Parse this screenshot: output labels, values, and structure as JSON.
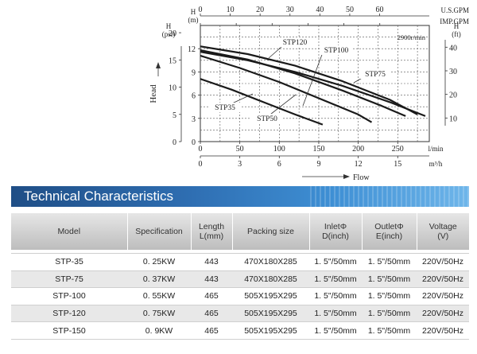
{
  "chart_data": {
    "type": "line",
    "speed_label": "2900r/min",
    "ylabel": "Head",
    "xlabel": "Flow",
    "axes": {
      "us_gpm": {
        "label": "U.S.GPM",
        "ticks": [
          0,
          10,
          20,
          30,
          40,
          50,
          60
        ]
      },
      "imp_gpm": {
        "label": "IMP.GPM",
        "ticks": [
          0,
          10,
          20,
          30,
          40,
          50
        ]
      },
      "l_min": {
        "label": "l/min",
        "ticks": [
          0,
          50,
          100,
          150,
          200,
          250
        ],
        "range": [
          0,
          290
        ]
      },
      "m3_h": {
        "label": "m³/h",
        "ticks": [
          0,
          3,
          6,
          9,
          12,
          15
        ]
      },
      "h_m": {
        "label": "H\n(m)",
        "ticks": [
          0,
          3,
          6,
          9,
          12
        ],
        "range": [
          0,
          15
        ]
      },
      "h_psi": {
        "label": "H\n(psi)",
        "ticks": [
          0,
          5,
          10,
          15,
          20
        ]
      },
      "h_ft": {
        "label": "H\n(ft)",
        "ticks": [
          10,
          20,
          30,
          40
        ]
      }
    },
    "series": [
      {
        "name": "STP35",
        "x": [
          0,
          40,
          80,
          120,
          155
        ],
        "y": [
          8.1,
          6.7,
          5.1,
          3.5,
          2.2
        ]
      },
      {
        "name": "STP50",
        "x": [
          0,
          50,
          100,
          150,
          200,
          217
        ],
        "y": [
          11.1,
          9.5,
          7.7,
          5.6,
          3.5,
          2.5
        ]
      },
      {
        "name": "STP75",
        "x": [
          0,
          60,
          120,
          180,
          240,
          285
        ],
        "y": [
          11.6,
          10.5,
          9.0,
          7.2,
          5.1,
          3.3
        ]
      },
      {
        "name": "STP100",
        "x": [
          0,
          60,
          120,
          180,
          230,
          260
        ],
        "y": [
          11.8,
          10.6,
          8.8,
          6.6,
          4.6,
          3.3
        ]
      },
      {
        "name": "STP120",
        "x": [
          0,
          60,
          120,
          180,
          240,
          275
        ],
        "y": [
          12.3,
          11.3,
          9.8,
          7.8,
          5.4,
          3.5
        ]
      }
    ]
  },
  "section": {
    "title": "Technical Characteristics"
  },
  "table": {
    "headers": [
      "Model",
      "Specification",
      "Length\nL(mm)",
      "Packing size",
      "InletΦ\nD(inch)",
      "OutletΦ\nE(inch)",
      "Voltage\n(V)"
    ],
    "rows": [
      [
        "STP-35",
        "0. 25KW",
        "443",
        "470X180X285",
        "1. 5\"/50mm",
        "1. 5\"/50mm",
        "220V/50Hz"
      ],
      [
        "STP-75",
        "0. 37KW",
        "443",
        "470X180X285",
        "1. 5\"/50mm",
        "1. 5\"/50mm",
        "220V/50Hz"
      ],
      [
        "STP-100",
        "0. 55KW",
        "465",
        "505X195X295",
        "1. 5\"/50mm",
        "1. 5\"/50mm",
        "220V/50Hz"
      ],
      [
        "STP-120",
        "0. 75KW",
        "465",
        "505X195X295",
        "1. 5\"/50mm",
        "1. 5\"/50mm",
        "220V/50Hz"
      ],
      [
        "STP-150",
        "0. 9KW",
        "465",
        "505X195X295",
        "1. 5\"/50mm",
        "1. 5\"/50mm",
        "220V/50Hz"
      ]
    ]
  }
}
